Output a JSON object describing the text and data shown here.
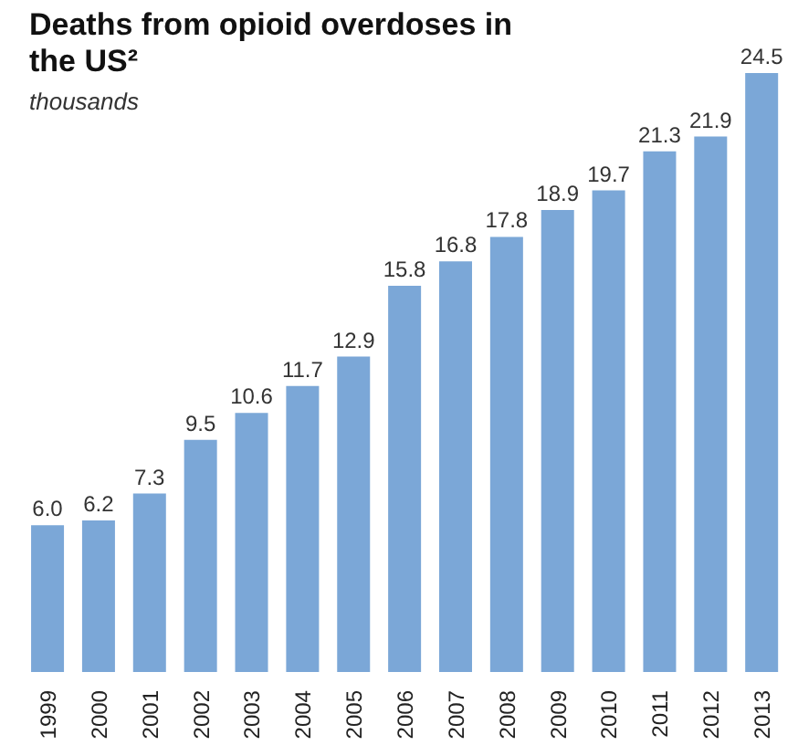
{
  "chart_data": {
    "type": "bar",
    "title": "Deaths from opioid overdoses in the US²",
    "subtitle": "thousands",
    "categories": [
      "1999",
      "2000",
      "2001",
      "2002",
      "2003",
      "2004",
      "2005",
      "2006",
      "2007",
      "2008",
      "2009",
      "2010",
      "2011",
      "2012",
      "2013"
    ],
    "values": [
      6.0,
      6.2,
      7.3,
      9.5,
      10.6,
      11.7,
      12.9,
      15.8,
      16.8,
      17.8,
      18.9,
      19.7,
      21.3,
      21.9,
      24.5
    ],
    "value_labels": [
      "6.0",
      "6.2",
      "7.3",
      "9.5",
      "10.6",
      "11.7",
      "12.9",
      "15.8",
      "16.8",
      "17.8",
      "18.9",
      "19.7",
      "21.3",
      "21.9",
      "24.5"
    ],
    "color": "#7ba7d7"
  }
}
